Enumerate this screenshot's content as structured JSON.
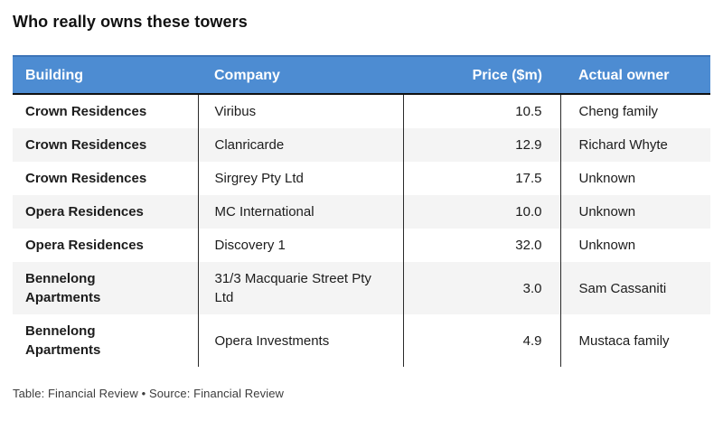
{
  "title": "Who really owns these towers",
  "footer": "Table: Financial Review • Source: Financial Review",
  "colors": {
    "header_bg": "#4d8cd2",
    "header_top": "#3d74b8",
    "header_border": "#111111",
    "stripe": "#f4f4f4",
    "divider": "#2a2a2a"
  },
  "table": {
    "columns": [
      "Building",
      "Company",
      "Price ($m)",
      "Actual owner"
    ]
  },
  "chart_data": {
    "type": "table",
    "title": "Who really owns these towers",
    "columns": [
      "Building",
      "Company",
      "Price ($m)",
      "Actual owner"
    ],
    "rows": [
      {
        "building": "Crown Residences",
        "company": "Viribus",
        "price": "10.5",
        "owner": "Cheng family"
      },
      {
        "building": "Crown Residences",
        "company": "Clanricarde",
        "price": "12.9",
        "owner": "Richard Whyte"
      },
      {
        "building": "Crown Residences",
        "company": "Sirgrey Pty Ltd",
        "price": "17.5",
        "owner": "Unknown"
      },
      {
        "building": "Opera Residences",
        "company": "MC International",
        "price": "10.0",
        "owner": "Unknown"
      },
      {
        "building": "Opera Residences",
        "company": "Discovery 1",
        "price": "32.0",
        "owner": "Unknown"
      },
      {
        "building": "Bennelong Apartments",
        "company": "31/3 Macquarie Street Pty Ltd",
        "price": "3.0",
        "owner": "Sam Cassaniti"
      },
      {
        "building": "Bennelong Apartments",
        "company": "Opera Investments",
        "price": "4.9",
        "owner": "Mustaca family"
      }
    ],
    "source_note": "Table: Financial Review • Source: Financial Review"
  }
}
